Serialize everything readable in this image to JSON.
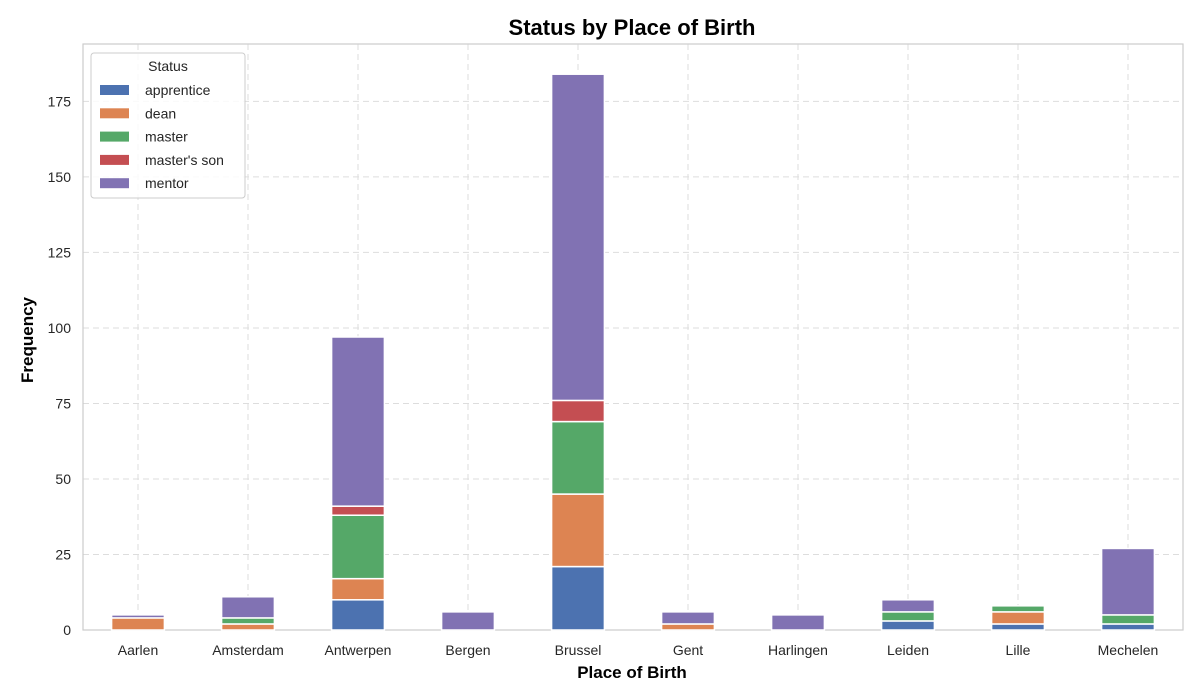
{
  "chart_data": {
    "type": "bar",
    "stacked": true,
    "title": "Status by Place of Birth",
    "xlabel": "Place of Birth",
    "ylabel": "Frequency",
    "ylim": [
      0,
      194
    ],
    "yticks": [
      0,
      25,
      50,
      75,
      100,
      125,
      150,
      175
    ],
    "grid": true,
    "legend": {
      "title": "Status",
      "placement": "top-left"
    },
    "categories": [
      "Aarlen",
      "Amsterdam",
      "Antwerpen",
      "Bergen",
      "Brussel",
      "Gent",
      "Harlingen",
      "Leiden",
      "Lille",
      "Mechelen"
    ],
    "series": [
      {
        "name": "apprentice",
        "color": "#4c72b0",
        "values": [
          0,
          0,
          10,
          0,
          21,
          0,
          0,
          3,
          2,
          2
        ]
      },
      {
        "name": "dean",
        "color": "#dd8452",
        "values": [
          4,
          2,
          7,
          0,
          24,
          2,
          0,
          0,
          4,
          0
        ]
      },
      {
        "name": "master",
        "color": "#55a868",
        "values": [
          0,
          2,
          21,
          0,
          24,
          0,
          0,
          3,
          2,
          3
        ]
      },
      {
        "name": "master's son",
        "color": "#c44e52",
        "values": [
          0,
          0,
          3,
          0,
          7,
          0,
          0,
          0,
          0,
          0
        ]
      },
      {
        "name": "mentor",
        "color": "#8172b3",
        "values": [
          1,
          7,
          56,
          6,
          108,
          4,
          5,
          4,
          0,
          22
        ]
      }
    ]
  }
}
